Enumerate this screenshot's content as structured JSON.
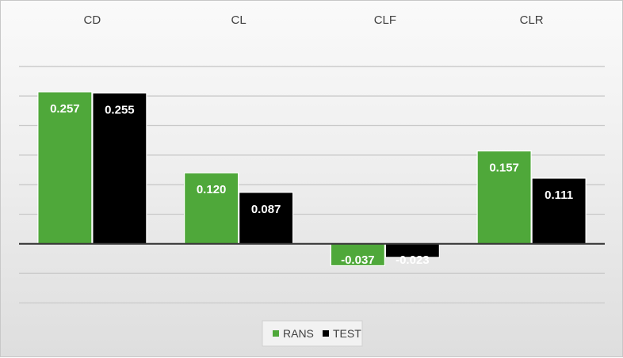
{
  "chart_data": {
    "type": "bar",
    "categories": [
      "CD",
      "CL",
      "CLF",
      "CLR"
    ],
    "series": [
      {
        "name": "RANS",
        "values": [
          0.257,
          0.12,
          -0.037,
          0.157
        ]
      },
      {
        "name": "TEST",
        "values": [
          0.255,
          0.087,
          -0.023,
          0.111
        ]
      }
    ],
    "value_labels": [
      [
        "0.257",
        "0.120",
        "-0.037",
        "0.157"
      ],
      [
        "0.255",
        "0.087",
        "-0.023",
        "0.111"
      ]
    ],
    "ylim": [
      -0.1,
      0.35
    ],
    "grid": true,
    "legend": "bottom",
    "category_labels_position": "top",
    "colors": {
      "RANS": "#4fa83a",
      "TEST": "#000000"
    }
  }
}
